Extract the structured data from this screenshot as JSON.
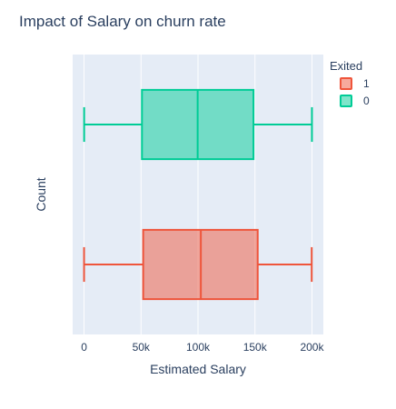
{
  "chart_data": {
    "type": "box",
    "orientation": "horizontal",
    "title": "Impact of Salary on churn rate",
    "xlabel": "Estimated Salary",
    "ylabel": "Count",
    "xlim": [
      -10000,
      210000
    ],
    "xticks": [
      {
        "value": 0,
        "label": "0"
      },
      {
        "value": 50000,
        "label": "50k"
      },
      {
        "value": 100000,
        "label": "100k"
      },
      {
        "value": 150000,
        "label": "150k"
      },
      {
        "value": 200000,
        "label": "200k"
      }
    ],
    "grid": true,
    "legend": {
      "title": "Exited",
      "position": "top-right",
      "entries": [
        {
          "label": "1",
          "color": "#ef553b"
        },
        {
          "label": "0",
          "color": "#00cc96"
        }
      ]
    },
    "series": [
      {
        "name": "0",
        "color": "#00cc96",
        "min": 90,
        "q1": 50800,
        "median": 99700,
        "q3": 148700,
        "max": 199990
      },
      {
        "name": "1",
        "color": "#ef553b",
        "min": 12,
        "q1": 51900,
        "median": 102500,
        "q3": 152400,
        "max": 199800
      }
    ],
    "colors": {
      "plot_bg": "#e5ecf6",
      "grid": "#ffffff",
      "text": "#2a3f5f"
    }
  }
}
